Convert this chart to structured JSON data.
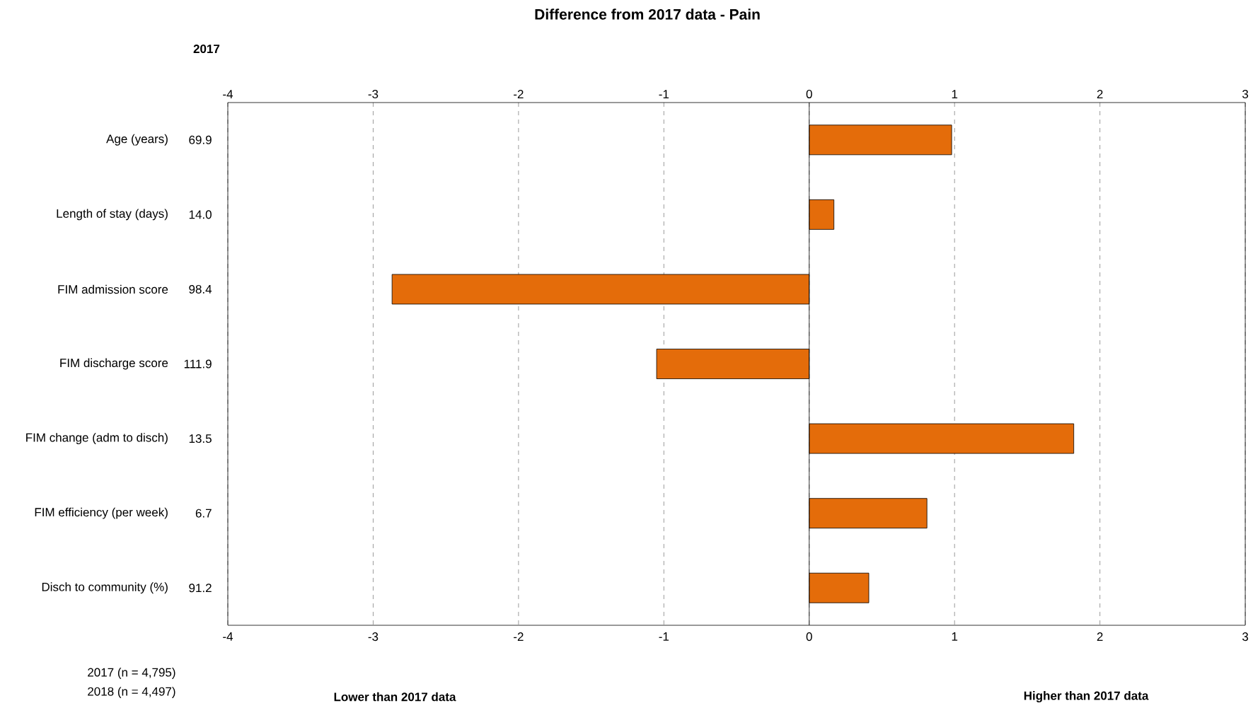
{
  "chart_data": {
    "type": "bar",
    "orientation": "horizontal",
    "title": "Difference from 2017 data - Pain",
    "categories": [
      "Age (years)",
      "Length of stay (days)",
      "FIM admission score",
      "FIM discharge score",
      "FIM change (adm to disch)",
      "FIM efficiency (per week)",
      "Disch to community (%)"
    ],
    "values": [
      0.98,
      0.17,
      -2.87,
      -1.05,
      1.82,
      0.81,
      0.41
    ],
    "color": "#e46c0a",
    "xlim": [
      -4,
      3
    ],
    "xticks": [
      -4,
      -3,
      -2,
      -1,
      0,
      1,
      2,
      3
    ],
    "x2lim": [
      -4,
      3
    ],
    "x2ticks": [
      -4,
      -3,
      -2,
      -1,
      0,
      1,
      2,
      3
    ],
    "grid": "x",
    "annotations": [
      "69.9",
      "14.0",
      "98.4",
      "111.9",
      "13.5",
      "6.7",
      "91.2",
      "2017",
      "2017  (n = 4,795)",
      "2018  (n = 4,497)",
      "Lower than 2017 data",
      "Higher than 2017 data"
    ]
  }
}
